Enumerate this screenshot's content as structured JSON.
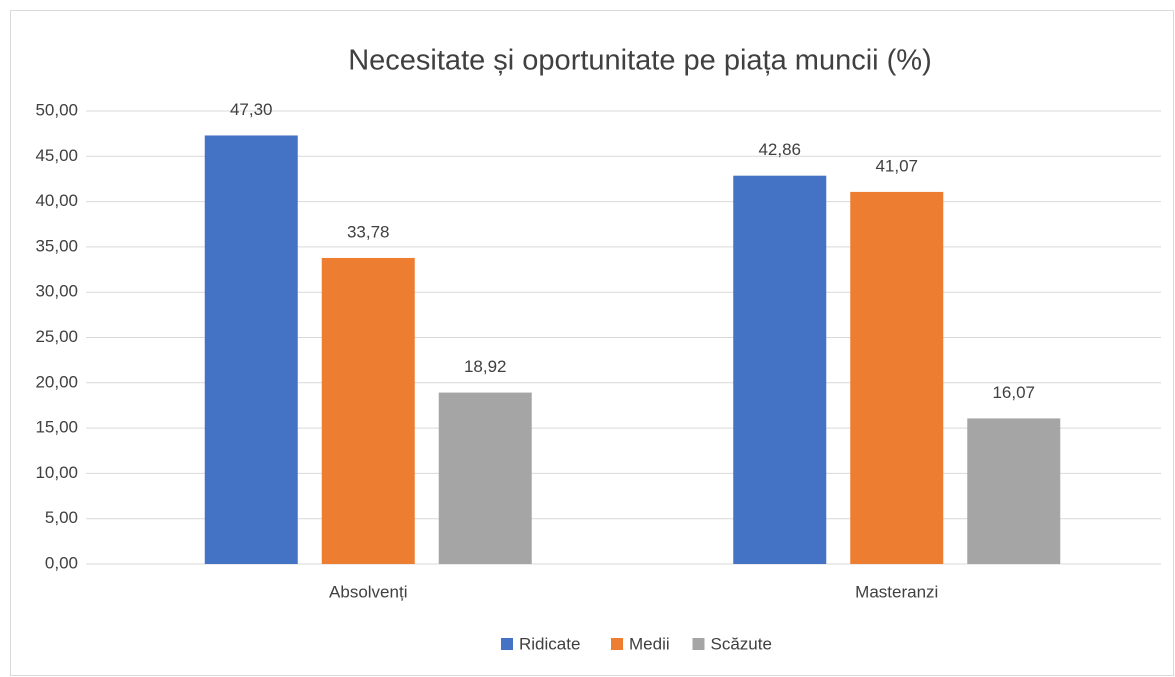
{
  "chart_data": {
    "type": "bar",
    "title": "Necesitate și oportunitate pe piața muncii (%)",
    "categories": [
      "Absolvenți",
      "Masteranzi"
    ],
    "series": [
      {
        "name": "Ridicate",
        "color": "#4472c4",
        "values": [
          47.3,
          42.86
        ],
        "value_labels": [
          "47,30",
          "42,86"
        ]
      },
      {
        "name": "Medii",
        "color": "#ed7d31",
        "values": [
          33.78,
          41.07
        ],
        "value_labels": [
          "33,78",
          "41,07"
        ]
      },
      {
        "name": "Scăzute",
        "color": "#a5a5a5",
        "values": [
          18.92,
          16.07
        ],
        "value_labels": [
          "18,92",
          "16,07"
        ]
      }
    ],
    "ylim": [
      0,
      50
    ],
    "yticks": [
      {
        "value": 0,
        "label": "0,00"
      },
      {
        "value": 5,
        "label": "5,00"
      },
      {
        "value": 10,
        "label": "10,00"
      },
      {
        "value": 15,
        "label": "15,00"
      },
      {
        "value": 20,
        "label": "20,00"
      },
      {
        "value": 25,
        "label": "25,00"
      },
      {
        "value": 30,
        "label": "30,00"
      },
      {
        "value": 35,
        "label": "35,00"
      },
      {
        "value": 40,
        "label": "40,00"
      },
      {
        "value": 45,
        "label": "45,00"
      },
      {
        "value": 50,
        "label": "50,00"
      }
    ],
    "grid": true,
    "legend": "bottom"
  }
}
